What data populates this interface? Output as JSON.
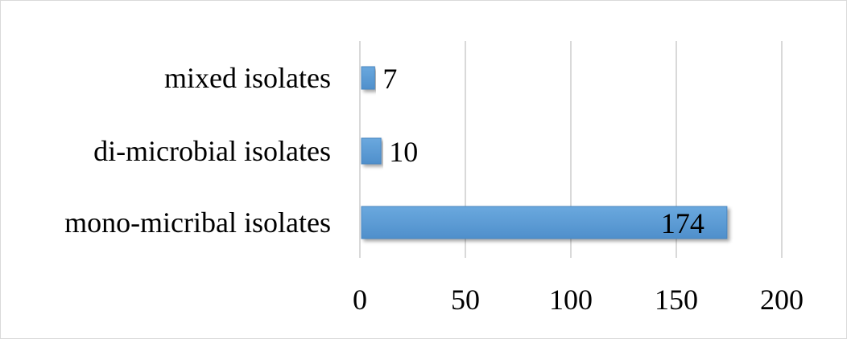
{
  "chart_data": {
    "type": "bar",
    "orientation": "horizontal",
    "title": "",
    "xlabel": "",
    "ylabel": "",
    "categories": [
      "mixed isolates",
      "di-microbial isolates",
      "mono-micribal isolates"
    ],
    "values": [
      7,
      10,
      174
    ],
    "data_labels": [
      "7",
      "10",
      "174"
    ],
    "xlim": [
      0,
      200
    ],
    "x_ticks": [
      0,
      50,
      100,
      150,
      200
    ],
    "x_tick_labels": [
      "0",
      "50",
      "100",
      "150",
      "200"
    ],
    "grid": "vertical",
    "legend": "none",
    "colors": {
      "bar": "#5b9bd5",
      "bar_dark": "#4a86c0",
      "grid": "#d9d9d9",
      "axis": "#d9d9d9",
      "text": "#000000"
    }
  }
}
